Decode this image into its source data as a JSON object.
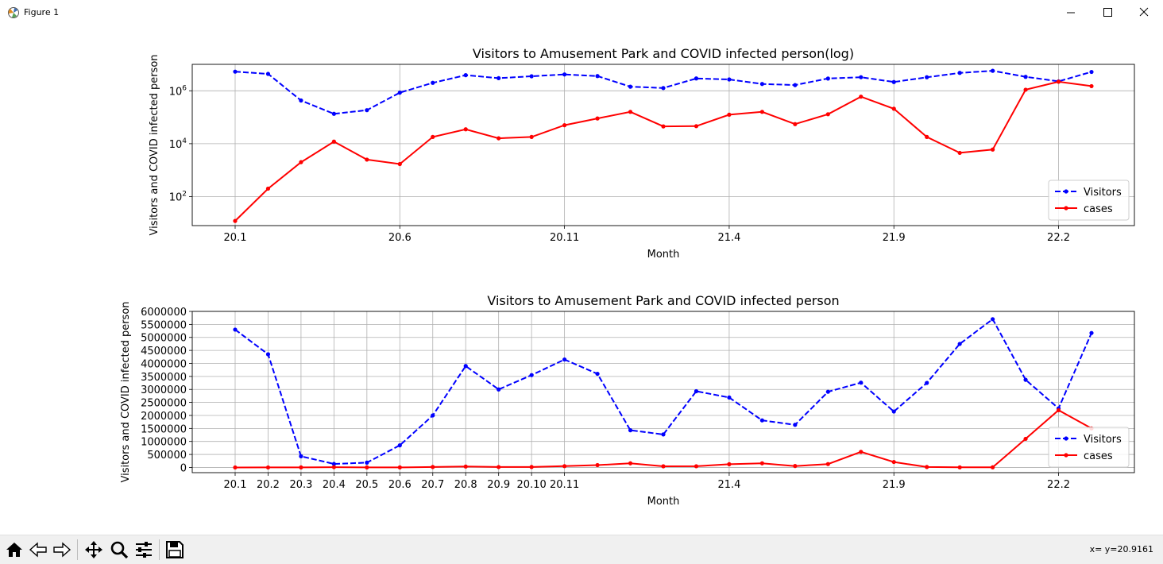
{
  "window": {
    "title": "Figure 1"
  },
  "toolbar": {
    "buttons": [
      "home-icon",
      "back-arrow-icon",
      "forward-arrow-icon",
      "pan-icon",
      "zoom-icon",
      "configure-subplots-icon",
      "save-icon"
    ],
    "coords": "x= y=20.9161"
  },
  "colors": {
    "visitors": "#0000ff",
    "cases": "#ff0000",
    "grid": "#b0b0b0"
  },
  "chart_data": [
    {
      "type": "line",
      "title": "Visitors to Amusement Park and COVID infected person(log)",
      "xlabel": "Month",
      "ylabel": "Visitors and COVID infected person",
      "yscale": "log",
      "x_tick_labels": [
        "20.1",
        "20.6",
        "20.11",
        "21.4",
        "21.9",
        "22.2"
      ],
      "x_tick_positions": [
        0,
        5,
        10,
        15,
        20,
        25
      ],
      "y_tick_labels": [
        {
          "base": "10",
          "exp": "2"
        },
        {
          "base": "10",
          "exp": "4"
        },
        {
          "base": "10",
          "exp": "6"
        }
      ],
      "y_tick_values": [
        100,
        10000,
        1000000
      ],
      "ylim": [
        8,
        10000000
      ],
      "grid": true,
      "legend": "lower-right",
      "series": [
        {
          "name": "Visitors",
          "color": "#0000ff",
          "linestyle": "dashed",
          "marker": "o",
          "values": [
            5300000,
            4350000,
            430000,
            135000,
            185000,
            850000,
            2000000,
            3900000,
            3000000,
            3550000,
            4150000,
            3600000,
            1430000,
            1270000,
            2930000,
            2690000,
            1810000,
            1640000,
            2910000,
            3260000,
            2150000,
            3250000,
            4750000,
            5700000,
            3370000,
            2270000,
            5170000
          ]
        },
        {
          "name": "cases",
          "color": "#ff0000",
          "linestyle": "solid",
          "marker": "o",
          "values": [
            12,
            200,
            2000,
            12000,
            2500,
            1700,
            18000,
            35000,
            16000,
            18000,
            50000,
            90000,
            160000,
            45000,
            46000,
            125000,
            160000,
            55000,
            130000,
            600000,
            210000,
            18000,
            4500,
            6000,
            1100000,
            2200000,
            1500000
          ]
        }
      ]
    },
    {
      "type": "line",
      "title": "Visitors to Amusement Park and COVID infected person",
      "xlabel": "Month",
      "ylabel": "Visitors and COVID infected person",
      "yscale": "linear",
      "x_tick_labels": [
        "20.1",
        "20.2",
        "20.3",
        "20.4",
        "20.5",
        "20.6",
        "20.7",
        "20.8",
        "20.9",
        "20.10",
        "20.11",
        "21.4",
        "21.9",
        "22.2"
      ],
      "x_tick_positions": [
        0,
        1,
        2,
        3,
        4,
        5,
        6,
        7,
        8,
        9,
        10,
        15,
        20,
        25
      ],
      "y_tick_labels": [
        "0",
        "500000",
        "1000000",
        "1500000",
        "2000000",
        "2500000",
        "3000000",
        "3500000",
        "4000000",
        "4500000",
        "5000000",
        "5500000",
        "6000000"
      ],
      "y_tick_values": [
        0,
        500000,
        1000000,
        1500000,
        2000000,
        2500000,
        3000000,
        3500000,
        4000000,
        4500000,
        5000000,
        5500000,
        6000000
      ],
      "ylim": [
        -200000,
        6000000
      ],
      "grid": true,
      "legend": "lower-right",
      "series": [
        {
          "name": "Visitors",
          "color": "#0000ff",
          "linestyle": "dashed",
          "marker": "o",
          "values": [
            5300000,
            4350000,
            430000,
            135000,
            185000,
            850000,
            2000000,
            3900000,
            3000000,
            3550000,
            4150000,
            3600000,
            1430000,
            1270000,
            2930000,
            2690000,
            1810000,
            1640000,
            2910000,
            3260000,
            2150000,
            3250000,
            4750000,
            5700000,
            3370000,
            2270000,
            5170000
          ]
        },
        {
          "name": "cases",
          "color": "#ff0000",
          "linestyle": "solid",
          "marker": "o",
          "values": [
            12,
            200,
            2000,
            12000,
            2500,
            1700,
            18000,
            35000,
            16000,
            18000,
            50000,
            90000,
            160000,
            45000,
            46000,
            125000,
            160000,
            55000,
            130000,
            600000,
            210000,
            18000,
            4500,
            6000,
            1100000,
            2200000,
            1500000
          ]
        }
      ]
    }
  ]
}
